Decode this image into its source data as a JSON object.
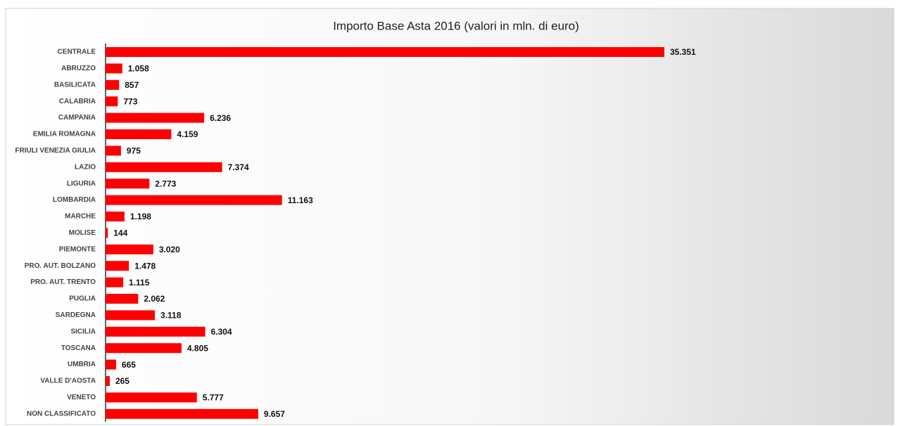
{
  "chart_data": {
    "type": "barh",
    "title": "Importo Base Asta 2016 (valori in mln. di euro)",
    "categories": [
      "CENTRALE",
      "ABRUZZO",
      "BASILICATA",
      "CALABRIA",
      "CAMPANIA",
      "EMILIA ROMAGNA",
      "FRIULI VENEZIA GIULIA",
      "LAZIO",
      "LIGURIA",
      "LOMBARDIA",
      "MARCHE",
      "MOLISE",
      "PIEMONTE",
      "PRO. AUT. BOLZANO",
      "PRO. AUT. TRENTO",
      "PUGLIA",
      "SARDEGNA",
      "SICILIA",
      "TOSCANA",
      "UMBRIA",
      "VALLE D'AOSTA",
      "VENETO",
      "NON CLASSIFICATO"
    ],
    "values": [
      35351,
      1058,
      857,
      773,
      6236,
      4159,
      975,
      7374,
      2773,
      11163,
      1198,
      144,
      3020,
      1478,
      1115,
      2062,
      3118,
      6304,
      4805,
      665,
      265,
      5777,
      9657
    ],
    "value_labels": [
      "35.351",
      "1.058",
      "857",
      "773",
      "6.236",
      "4.159",
      "975",
      "7.374",
      "2.773",
      "11.163",
      "1.198",
      "144",
      "3.020",
      "1.478",
      "1.115",
      "2.062",
      "3.118",
      "6.304",
      "4.805",
      "665",
      "265",
      "5.777",
      "9.657"
    ],
    "color": "#ff0000"
  }
}
